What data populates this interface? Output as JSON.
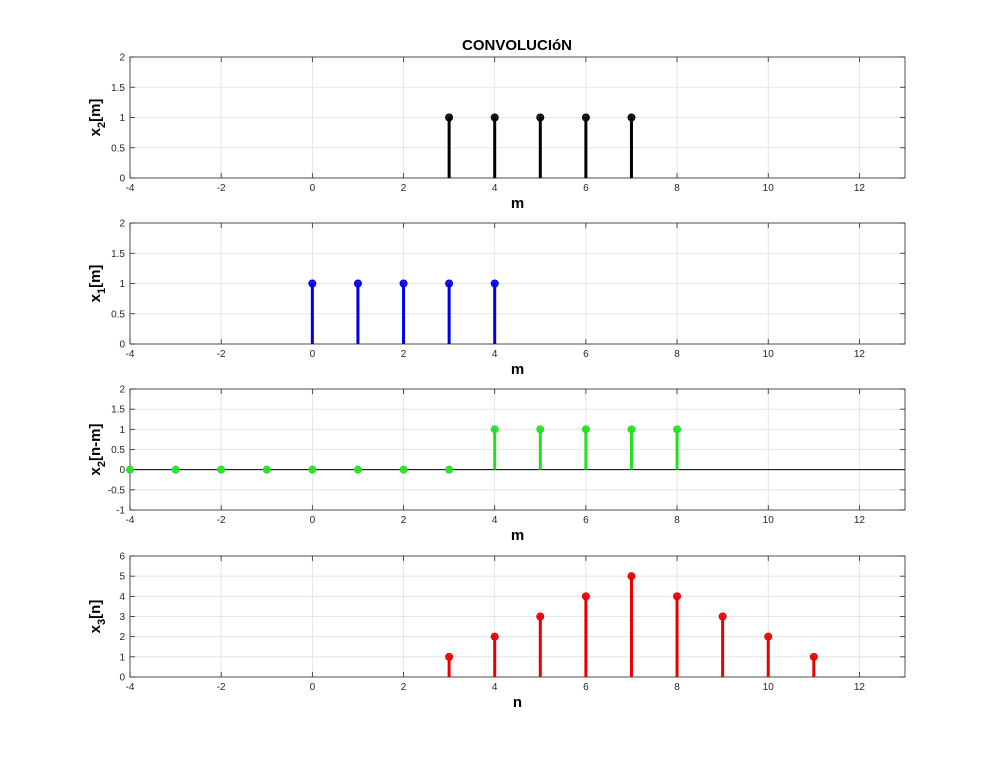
{
  "title": "CONVOLUCIóN",
  "chart_data": [
    {
      "type": "stem",
      "ylabel_base": "x",
      "ylabel_sub": "2",
      "ylabel_rest": "[m]",
      "xlabel": "m",
      "xlim": [
        -4,
        13
      ],
      "ylim": [
        0,
        2
      ],
      "xticks": [
        -4,
        -2,
        0,
        2,
        4,
        6,
        8,
        10,
        12
      ],
      "yticks": [
        0,
        0.5,
        1,
        1.5,
        2
      ],
      "grid": true,
      "color": "#000000",
      "x": [
        3,
        4,
        5,
        6,
        7
      ],
      "y": [
        1,
        1,
        1,
        1,
        1
      ]
    },
    {
      "type": "stem",
      "ylabel_base": "x",
      "ylabel_sub": "1",
      "ylabel_rest": "[m]",
      "xlabel": "m",
      "xlim": [
        -4,
        13
      ],
      "ylim": [
        0,
        2
      ],
      "xticks": [
        -4,
        -2,
        0,
        2,
        4,
        6,
        8,
        10,
        12
      ],
      "yticks": [
        0,
        0.5,
        1,
        1.5,
        2
      ],
      "grid": true,
      "color": "#0000e6",
      "x": [
        0,
        1,
        2,
        3,
        4
      ],
      "y": [
        1,
        1,
        1,
        1,
        1
      ]
    },
    {
      "type": "stem",
      "ylabel_base": "x",
      "ylabel_sub": "2",
      "ylabel_rest": "[n-m]",
      "xlabel": "m",
      "xlim": [
        -4,
        13
      ],
      "ylim": [
        -1,
        2
      ],
      "xticks": [
        -4,
        -2,
        0,
        2,
        4,
        6,
        8,
        10,
        12
      ],
      "yticks": [
        -1,
        -0.5,
        0,
        0.5,
        1,
        1.5,
        2
      ],
      "grid": true,
      "color": "#22e022",
      "x": [
        -4,
        -3,
        -2,
        -1,
        0,
        1,
        2,
        3,
        4,
        5,
        6,
        7,
        8
      ],
      "y": [
        0,
        0,
        0,
        0,
        0,
        0,
        0,
        0,
        1,
        1,
        1,
        1,
        1
      ]
    },
    {
      "type": "stem",
      "ylabel_base": "x",
      "ylabel_sub": "3",
      "ylabel_rest": "[n]",
      "xlabel": "n",
      "xlim": [
        -4,
        13
      ],
      "ylim": [
        0,
        6
      ],
      "xticks": [
        -4,
        -2,
        0,
        2,
        4,
        6,
        8,
        10,
        12
      ],
      "yticks": [
        0,
        1,
        2,
        3,
        4,
        5,
        6
      ],
      "grid": true,
      "color": "#e60000",
      "x": [
        3,
        4,
        5,
        6,
        7,
        8,
        9,
        10,
        11
      ],
      "y": [
        1,
        2,
        3,
        4,
        5,
        4,
        3,
        2,
        1
      ]
    }
  ]
}
